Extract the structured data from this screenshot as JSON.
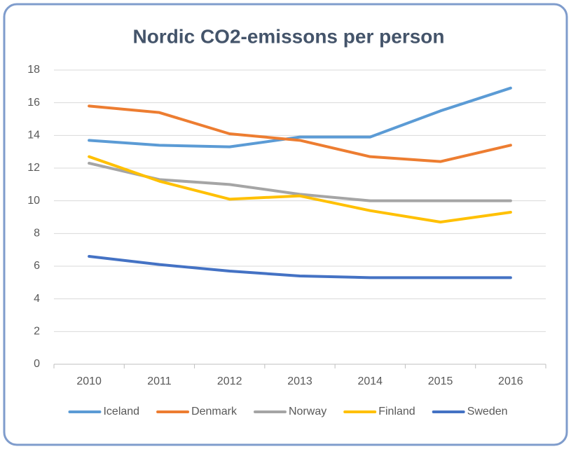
{
  "chart_data": {
    "type": "line",
    "title": "Nordic CO2-emissons per person",
    "categories": [
      "2010",
      "2011",
      "2012",
      "2013",
      "2014",
      "2015",
      "2016"
    ],
    "series": [
      {
        "name": "Iceland",
        "color": "#5b9bd5",
        "values": [
          13.7,
          13.4,
          13.3,
          13.9,
          13.9,
          15.5,
          16.9
        ]
      },
      {
        "name": "Denmark",
        "color": "#ed7d31",
        "values": [
          15.8,
          15.4,
          14.1,
          13.7,
          12.7,
          12.4,
          13.4
        ]
      },
      {
        "name": "Norway",
        "color": "#a5a5a5",
        "values": [
          12.3,
          11.3,
          11.0,
          10.4,
          10.0,
          10.0,
          10.0
        ]
      },
      {
        "name": "Finland",
        "color": "#ffc000",
        "values": [
          12.7,
          11.2,
          10.1,
          10.3,
          9.4,
          8.7,
          9.3
        ]
      },
      {
        "name": "Sweden",
        "color": "#4472c4",
        "values": [
          6.6,
          6.1,
          5.7,
          5.4,
          5.3,
          5.3,
          5.3
        ]
      }
    ],
    "ylim": [
      0,
      18
    ],
    "yticks": [
      0,
      2,
      4,
      6,
      8,
      10,
      12,
      14,
      16,
      18
    ],
    "grid": true,
    "legend": "bottom"
  }
}
